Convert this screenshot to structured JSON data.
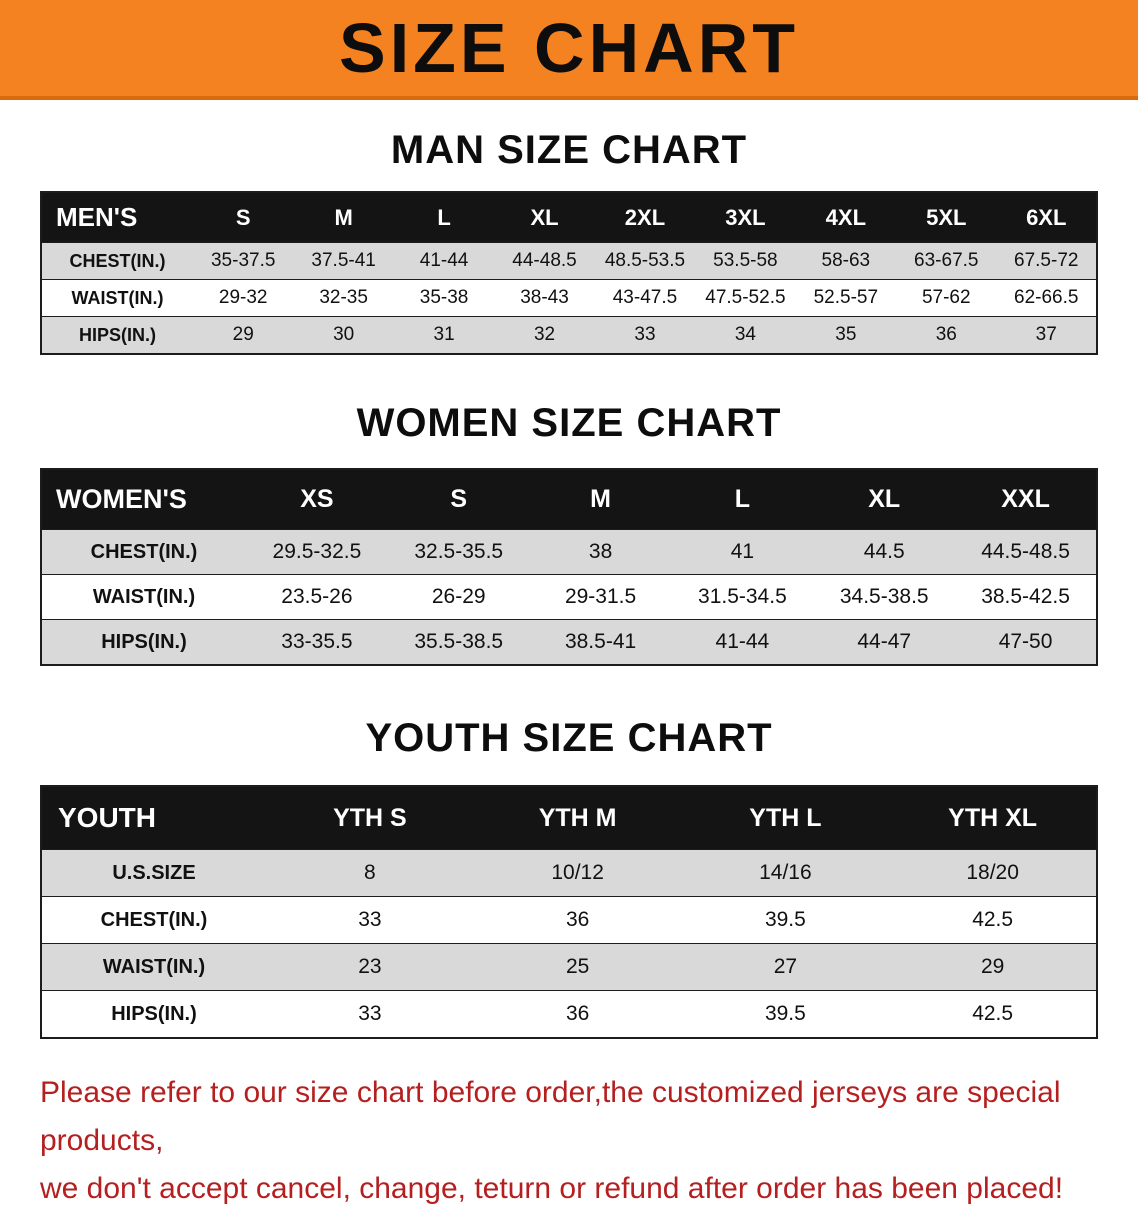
{
  "banner": {
    "title": "SIZE CHART"
  },
  "colors": {
    "banner_bg": "#f58220",
    "banner_edge": "#d96b0c",
    "header_bg": "#141414",
    "stripe_gray": "#d9d9d9",
    "note_red": "#b51f1f"
  },
  "sections": {
    "men": {
      "heading": "MAN SIZE CHART",
      "table": {
        "header": [
          "MEN'S",
          "S",
          "M",
          "L",
          "XL",
          "2XL",
          "3XL",
          "4XL",
          "5XL",
          "6XL"
        ],
        "rows": [
          [
            "CHEST(IN.)",
            "35-37.5",
            "37.5-41",
            "41-44",
            "44-48.5",
            "48.5-53.5",
            "53.5-58",
            "58-63",
            "63-67.5",
            "67.5-72"
          ],
          [
            "WAIST(IN.)",
            "29-32",
            "32-35",
            "35-38",
            "38-43",
            "43-47.5",
            "47.5-52.5",
            "52.5-57",
            "57-62",
            "62-66.5"
          ],
          [
            "HIPS(IN.)",
            "29",
            "30",
            "31",
            "32",
            "33",
            "34",
            "35",
            "36",
            "37"
          ]
        ]
      }
    },
    "women": {
      "heading": "WOMEN SIZE CHART",
      "table": {
        "header": [
          "WOMEN'S",
          "XS",
          "S",
          "M",
          "L",
          "XL",
          "XXL"
        ],
        "rows": [
          [
            "CHEST(IN.)",
            "29.5-32.5",
            "32.5-35.5",
            "38",
            "41",
            "44.5",
            "44.5-48.5"
          ],
          [
            "WAIST(IN.)",
            "23.5-26",
            "26-29",
            "29-31.5",
            "31.5-34.5",
            "34.5-38.5",
            "38.5-42.5"
          ],
          [
            "HIPS(IN.)",
            "33-35.5",
            "35.5-38.5",
            "38.5-41",
            "41-44",
            "44-47",
            "47-50"
          ]
        ]
      }
    },
    "youth": {
      "heading": "YOUTH SIZE CHART",
      "table": {
        "header": [
          "YOUTH",
          "YTH S",
          "YTH M",
          "YTH L",
          "YTH XL"
        ],
        "rows": [
          [
            "U.S.SIZE",
            "8",
            "10/12",
            "14/16",
            "18/20"
          ],
          [
            "CHEST(IN.)",
            "33",
            "36",
            "39.5",
            "42.5"
          ],
          [
            "WAIST(IN.)",
            "23",
            "25",
            "27",
            "29"
          ],
          [
            "HIPS(IN.)",
            "33",
            "36",
            "39.5",
            "42.5"
          ]
        ]
      }
    }
  },
  "note": {
    "line1": "Please refer to our size chart before order,the customized jerseys are special products,",
    "line2": "we don't accept cancel, change, teturn or refund after order has been placed!"
  }
}
